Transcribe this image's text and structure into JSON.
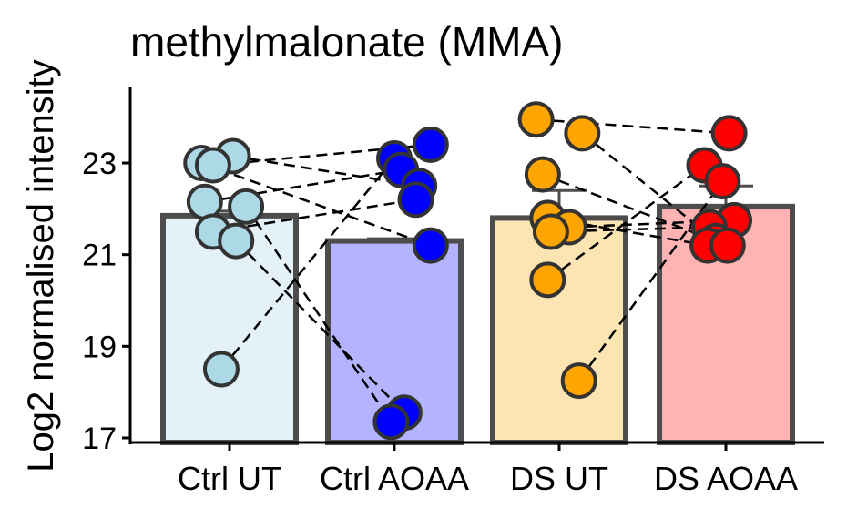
{
  "chart_data": {
    "type": "bar",
    "title": "methylmalonate (MMA)",
    "xlabel": "",
    "ylabel": "Log2 normalised intensity",
    "ylim": [
      16.9,
      24.65
    ],
    "yticks": [
      17,
      19,
      21,
      23
    ],
    "categories": [
      "Ctrl UT",
      "Ctrl AOAA",
      "DS UT",
      "DS AOAA"
    ],
    "bar_values": [
      21.85,
      21.3,
      21.8,
      22.05
    ],
    "error_upper": [
      21.95,
      21.35,
      22.4,
      22.5
    ],
    "bar_fill_colors": [
      "#e5f1f8",
      "#b3b3ff",
      "#fde5b3",
      "#ffb3b3"
    ],
    "point_colors": [
      "#add8e6",
      "#0000ff",
      "#ffa500",
      "#ff0000"
    ],
    "bar_edge_color": "#4d4d4d",
    "grid": false,
    "legend": "none",
    "points": [
      {
        "group": 0,
        "x_offset": -0.17,
        "y": 23.0
      },
      {
        "group": 0,
        "x_offset": 0.02,
        "y": 23.15
      },
      {
        "group": 0,
        "x_offset": -0.15,
        "y": 22.15
      },
      {
        "group": 0,
        "x_offset": -0.1,
        "y": 22.95
      },
      {
        "group": 0,
        "x_offset": 0.1,
        "y": 22.05
      },
      {
        "group": 0,
        "x_offset": -0.1,
        "y": 21.5
      },
      {
        "group": 0,
        "x_offset": 0.04,
        "y": 21.3
      },
      {
        "group": 0,
        "x_offset": -0.05,
        "y": 18.5
      },
      {
        "group": 1,
        "x_offset": 0.0,
        "y": 23.1
      },
      {
        "group": 1,
        "x_offset": 0.22,
        "y": 23.4
      },
      {
        "group": 1,
        "x_offset": 0.04,
        "y": 22.85
      },
      {
        "group": 1,
        "x_offset": 0.15,
        "y": 22.5
      },
      {
        "group": 1,
        "x_offset": 0.13,
        "y": 22.2
      },
      {
        "group": 1,
        "x_offset": 0.22,
        "y": 21.2
      },
      {
        "group": 1,
        "x_offset": 0.06,
        "y": 17.55
      },
      {
        "group": 1,
        "x_offset": -0.02,
        "y": 17.35
      },
      {
        "group": 2,
        "x_offset": -0.14,
        "y": 23.95
      },
      {
        "group": 2,
        "x_offset": 0.14,
        "y": 23.65
      },
      {
        "group": 2,
        "x_offset": -0.1,
        "y": 22.75
      },
      {
        "group": 2,
        "x_offset": -0.07,
        "y": 21.8
      },
      {
        "group": 2,
        "x_offset": 0.06,
        "y": 21.6
      },
      {
        "group": 2,
        "x_offset": -0.05,
        "y": 21.5
      },
      {
        "group": 2,
        "x_offset": -0.07,
        "y": 20.45
      },
      {
        "group": 2,
        "x_offset": 0.12,
        "y": 18.25
      },
      {
        "group": 3,
        "x_offset": 0.02,
        "y": 23.65
      },
      {
        "group": 3,
        "x_offset": -0.13,
        "y": 22.95
      },
      {
        "group": 3,
        "x_offset": -0.02,
        "y": 22.6
      },
      {
        "group": 3,
        "x_offset": 0.05,
        "y": 21.75
      },
      {
        "group": 3,
        "x_offset": -0.1,
        "y": 21.6
      },
      {
        "group": 3,
        "x_offset": -0.06,
        "y": 21.3
      },
      {
        "group": 3,
        "x_offset": -0.11,
        "y": 21.2
      },
      {
        "group": 3,
        "x_offset": 0.01,
        "y": 21.2
      }
    ],
    "pairs": [
      [
        0,
        13
      ],
      [
        1,
        11
      ],
      [
        2,
        10
      ],
      [
        3,
        9
      ],
      [
        4,
        15
      ],
      [
        5,
        12
      ],
      [
        6,
        14
      ],
      [
        7,
        8
      ],
      [
        16,
        24
      ],
      [
        17,
        29
      ],
      [
        18,
        31
      ],
      [
        19,
        30
      ],
      [
        20,
        27
      ],
      [
        21,
        28
      ],
      [
        22,
        25
      ],
      [
        23,
        26
      ]
    ]
  }
}
